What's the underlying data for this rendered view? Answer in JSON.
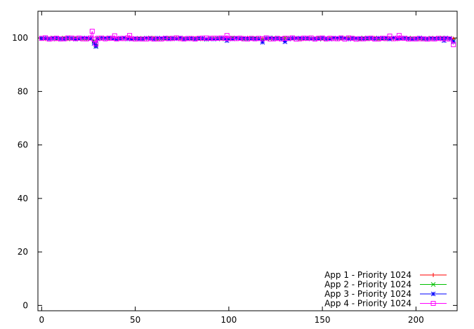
{
  "chart_data": {
    "type": "line",
    "title": "",
    "xlabel": "",
    "ylabel": "",
    "xlim": [
      -2,
      222
    ],
    "ylim": [
      -2,
      110
    ],
    "x_ticks": [
      0,
      50,
      100,
      150,
      200
    ],
    "y_ticks": [
      0,
      20,
      40,
      60,
      80,
      100
    ],
    "grid": false,
    "legend_position": "bottom-right",
    "baseline": 99.8,
    "series": [
      {
        "name": "App 1 - Priority 1024",
        "color": "#ff0000",
        "marker": "plus",
        "dips": [
          [
            28,
            98.5
          ],
          [
            29,
            97.2
          ]
        ]
      },
      {
        "name": "App 2 - Priority 1024",
        "color": "#00c000",
        "marker": "cross",
        "dips": [
          [
            28,
            98.8
          ],
          [
            29,
            97.0
          ],
          [
            220,
            98.9
          ]
        ]
      },
      {
        "name": "App 3 - Priority 1024",
        "color": "#0000ff",
        "marker": "star",
        "dips": [
          [
            28,
            98.0
          ],
          [
            29,
            96.8
          ],
          [
            99,
            99.0
          ],
          [
            118,
            98.4
          ],
          [
            130,
            98.6
          ],
          [
            215,
            99.0
          ],
          [
            220,
            98.6
          ]
        ]
      },
      {
        "name": "App 4 - Priority 1024",
        "color": "#ff00ff",
        "marker": "square",
        "dips": [
          [
            27,
            102.5
          ],
          [
            28,
            99.5
          ],
          [
            29,
            97.8
          ],
          [
            39,
            100.8
          ],
          [
            47,
            100.9
          ],
          [
            99,
            100.9
          ],
          [
            186,
            100.7
          ],
          [
            191,
            100.9
          ],
          [
            220,
            97.5
          ]
        ]
      }
    ]
  }
}
